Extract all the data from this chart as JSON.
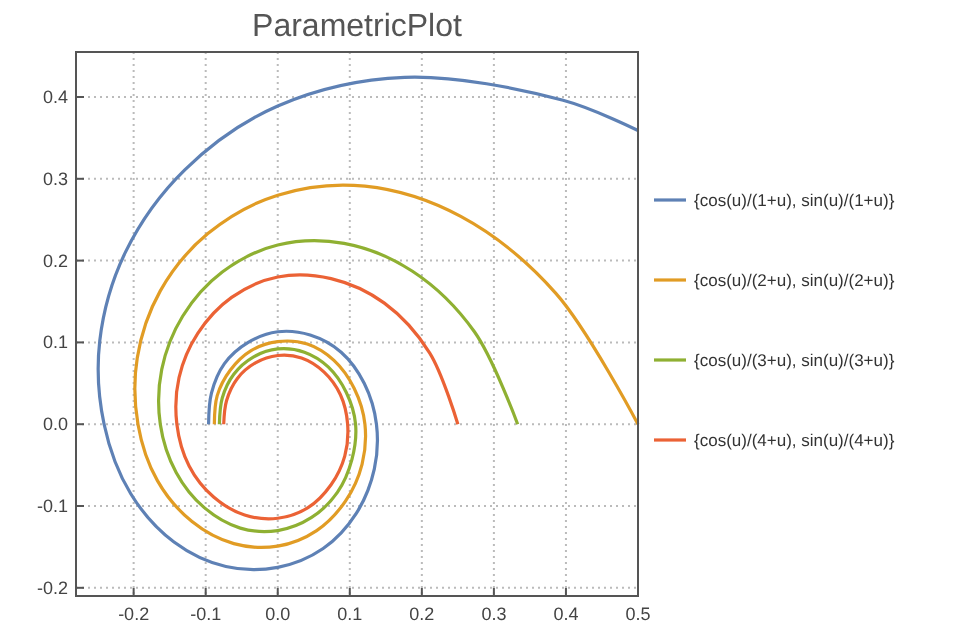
{
  "chart_data": {
    "type": "line",
    "title": "ParametricPlot",
    "xlim": [
      -0.28,
      0.5
    ],
    "ylim": [
      -0.21,
      0.455
    ],
    "xticks": [
      -0.2,
      -0.1,
      {
        "value": 0,
        "label": "0.0"
      },
      0.1,
      0.2,
      0.3,
      0.4,
      0.5
    ],
    "yticks": [
      -0.2,
      -0.1,
      {
        "value": 0,
        "label": "0.0"
      },
      0.1,
      0.2,
      0.3,
      0.4
    ],
    "grid": true,
    "legend": "right",
    "marker": "none",
    "line_style": "solid",
    "series": [
      {
        "name": "{cos(u)/(1+u), sin(u)/(1+u)}",
        "color": "#5e81b5",
        "x": [
          0.5,
          0.396,
          0.176,
          0,
          -0.129,
          -0.211,
          -0.247,
          -0.241,
          -0.204,
          -0.144,
          -0.072,
          0,
          0.063,
          0.109,
          0.134,
          0.137,
          0.12,
          0.088,
          0.045,
          0,
          -0.041,
          -0.074,
          -0.092,
          -0.096
        ],
        "values": [
          0.359,
          0.396,
          0.424,
          0.389,
          0.311,
          0.211,
          0.102,
          0,
          -0.085,
          -0.144,
          -0.174,
          -0.175,
          -0.152,
          -0.109,
          -0.055,
          0,
          0.05,
          0.088,
          0.109,
          0.113,
          0.1,
          0.074,
          0.038,
          0
        ]
      },
      {
        "name": "{cos(u)/(2+u), sin(u)/(2+u)}",
        "color": "#e19c24",
        "x": [
          0.5,
          0.386,
          0.254,
          0.121,
          0,
          -0.097,
          -0.163,
          -0.195,
          -0.194,
          -0.167,
          -0.119,
          -0.061,
          0,
          0.054,
          0.094,
          0.117,
          0.121,
          0.106,
          0.078,
          0.041,
          0,
          -0.037,
          -0.066,
          -0.084,
          -0.088
        ],
        "values": [
          0,
          0.16,
          0.254,
          0.291,
          0.28,
          0.233,
          0.163,
          0.081,
          0,
          -0.069,
          -0.119,
          -0.146,
          -0.149,
          -0.13,
          -0.094,
          -0.049,
          0,
          0.044,
          0.078,
          0.098,
          0.101,
          0.09,
          0.066,
          0.035,
          0
        ]
      },
      {
        "name": "{cos(u)/(3+u), sin(u)/(3+u)}",
        "color": "#8fb032",
        "x": [
          0.333,
          0.273,
          0.187,
          0.092,
          0,
          -0.077,
          -0.132,
          -0.161,
          -0.163,
          -0.141,
          -0.102,
          -0.052,
          0,
          0.047,
          0.083,
          0.103,
          0.108,
          0.095,
          0.07,
          0.037,
          0,
          -0.034,
          -0.061,
          -0.077,
          -0.081
        ],
        "values": [
          0,
          0.113,
          0.187,
          0.221,
          0.219,
          0.186,
          0.132,
          0.067,
          0,
          -0.059,
          -0.102,
          -0.127,
          -0.13,
          -0.114,
          -0.083,
          -0.043,
          0,
          0.039,
          0.07,
          0.088,
          0.092,
          0.082,
          0.061,
          0.032,
          0
        ]
      },
      {
        "name": "{cos(u)/(4+u), sin(u)/(4+u)}",
        "color": "#eb6235",
        "x": [
          0.25,
          0.211,
          0.148,
          0.074,
          0,
          -0.064,
          -0.111,
          -0.137,
          -0.14,
          -0.123,
          -0.089,
          -0.046,
          0,
          0.042,
          0.074,
          0.093,
          0.097,
          0.087,
          0.064,
          0.033,
          0,
          -0.031,
          -0.056,
          -0.071,
          -0.075
        ],
        "values": [
          0,
          0.087,
          0.148,
          0.178,
          0.18,
          0.155,
          0.111,
          0.057,
          0,
          -0.051,
          -0.089,
          -0.111,
          -0.115,
          -0.102,
          -0.074,
          -0.039,
          0,
          0.036,
          0.064,
          0.081,
          0.084,
          0.075,
          0.056,
          0.029,
          0
        ]
      }
    ]
  }
}
